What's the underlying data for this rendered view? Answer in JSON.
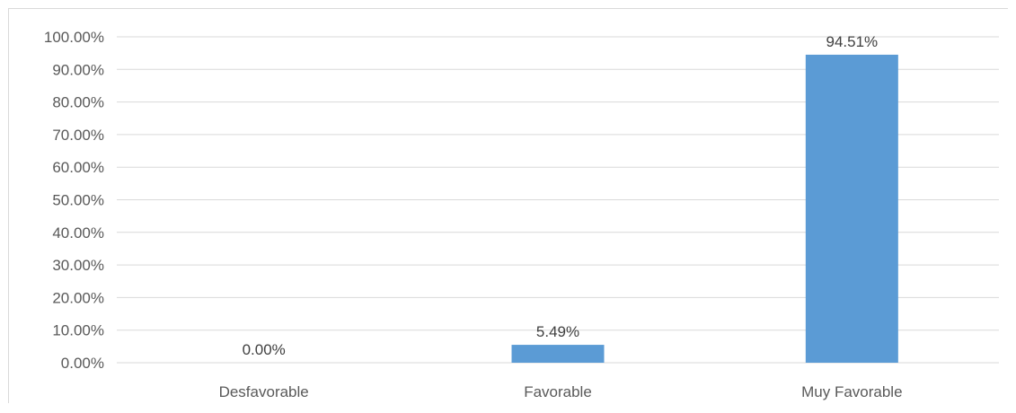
{
  "chart_data": {
    "type": "bar",
    "categories": [
      "Desfavorable",
      "Favorable",
      "Muy Favorable"
    ],
    "values": [
      0.0,
      5.49,
      94.51
    ],
    "data_labels": [
      "0.00%",
      "5.49%",
      "94.51%"
    ],
    "ylim": [
      0,
      100
    ],
    "y_ticks": [
      0,
      10,
      20,
      30,
      40,
      50,
      60,
      70,
      80,
      90,
      100
    ],
    "y_tick_labels": [
      "0.00%",
      "10.00%",
      "20.00%",
      "30.00%",
      "40.00%",
      "50.00%",
      "60.00%",
      "70.00%",
      "80.00%",
      "90.00%",
      "100.00%"
    ],
    "grid": true,
    "legend": "none",
    "bar_color": "#5b9bd5",
    "grid_color": "#d9d9d9"
  }
}
